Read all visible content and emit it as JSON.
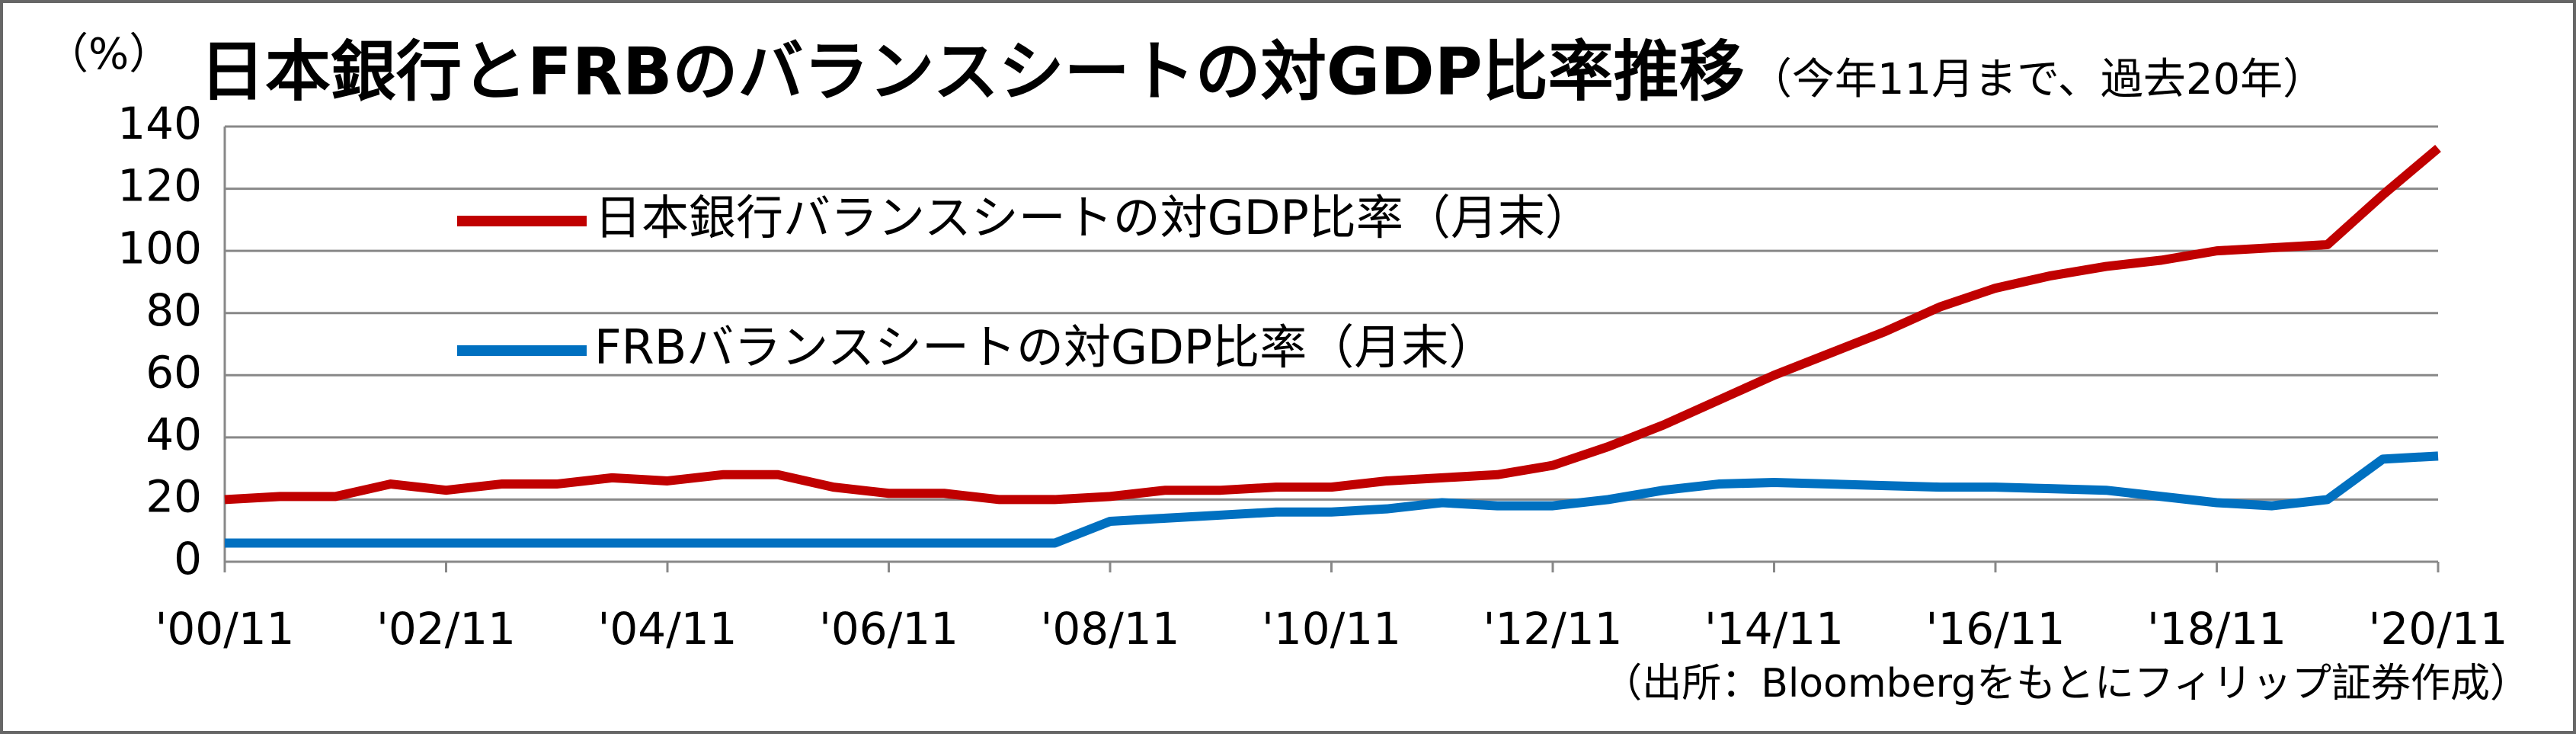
{
  "chart_data": {
    "type": "line",
    "title": "日本銀行とFRBのバランスシートの対GDP比率推移",
    "subtitle": "（今年11月まで、過去20年）",
    "y_label": "（%）",
    "source": "（出所：Bloombergをもとにフィリップ証券作成）",
    "categories": [
      "'00/11",
      null,
      null,
      null,
      "'02/11",
      null,
      null,
      null,
      "'04/11",
      null,
      null,
      null,
      "'06/11",
      null,
      null,
      null,
      "'08/11",
      null,
      null,
      null,
      "'10/11",
      null,
      null,
      null,
      "'12/11",
      null,
      null,
      null,
      "'14/11",
      null,
      null,
      null,
      "'16/11",
      null,
      null,
      null,
      "'18/11",
      null,
      null,
      null,
      "'20/11"
    ],
    "series": [
      {
        "name": "日本銀行バランスシートの対GDP比率（月末）",
        "color": "#c00000",
        "values": [
          20,
          21,
          21,
          25,
          23,
          25,
          25,
          27,
          26,
          28,
          28,
          24,
          22,
          22,
          20,
          20,
          21,
          23,
          23,
          24,
          24,
          26,
          27,
          28,
          31,
          37,
          44,
          52,
          60,
          67,
          74,
          82,
          88,
          92,
          95,
          97,
          100,
          101,
          102,
          118,
          133
        ]
      },
      {
        "name": "FRBバランスシートの対GDP比率（月末）",
        "color": "#0070c0",
        "values": [
          6,
          6,
          6,
          6,
          6,
          6,
          6,
          6,
          6,
          6,
          6,
          6,
          6,
          6,
          6,
          6,
          13,
          14,
          15,
          16,
          16,
          17,
          19,
          18,
          18,
          20,
          23,
          25,
          25.5,
          25,
          24.5,
          24,
          24,
          23.5,
          23,
          21,
          19,
          18,
          20,
          33,
          34
        ]
      }
    ],
    "ylim": [
      0,
      140
    ],
    "yticks": [
      0,
      20,
      40,
      60,
      80,
      100,
      120,
      140
    ],
    "grid": true
  }
}
